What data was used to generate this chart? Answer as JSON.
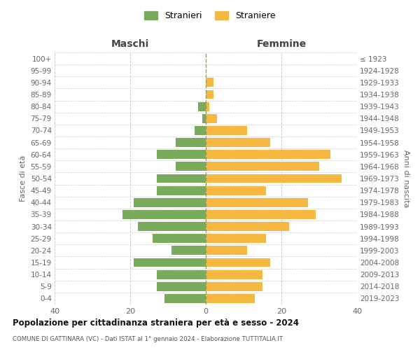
{
  "age_groups": [
    "0-4",
    "5-9",
    "10-14",
    "15-19",
    "20-24",
    "25-29",
    "30-34",
    "35-39",
    "40-44",
    "45-49",
    "50-54",
    "55-59",
    "60-64",
    "65-69",
    "70-74",
    "75-79",
    "80-84",
    "85-89",
    "90-94",
    "95-99",
    "100+"
  ],
  "birth_years": [
    "2019-2023",
    "2014-2018",
    "2009-2013",
    "2004-2008",
    "1999-2003",
    "1994-1998",
    "1989-1993",
    "1984-1988",
    "1979-1983",
    "1974-1978",
    "1969-1973",
    "1964-1968",
    "1959-1963",
    "1954-1958",
    "1949-1953",
    "1944-1948",
    "1939-1943",
    "1934-1938",
    "1929-1933",
    "1924-1928",
    "≤ 1923"
  ],
  "maschi": [
    11,
    13,
    13,
    19,
    9,
    14,
    18,
    22,
    19,
    13,
    13,
    8,
    13,
    8,
    3,
    1,
    2,
    0,
    0,
    0,
    0
  ],
  "femmine": [
    13,
    15,
    15,
    17,
    11,
    16,
    22,
    29,
    27,
    16,
    36,
    30,
    33,
    17,
    11,
    3,
    1,
    2,
    2,
    0,
    0
  ],
  "color_maschi": "#7aaa5b",
  "color_femmine": "#f5b942",
  "xlim": 40,
  "title": "Popolazione per cittadinanza straniera per età e sesso - 2024",
  "subtitle": "COMUNE DI GATTINARA (VC) - Dati ISTAT al 1° gennaio 2024 - Elaborazione TUTTITALIA.IT",
  "header_left": "Maschi",
  "header_right": "Femmine",
  "ylabel_left": "Fasce di età",
  "ylabel_right": "Anni di nascita",
  "legend_maschi": "Stranieri",
  "legend_femmine": "Straniere",
  "background_color": "#ffffff",
  "grid_color": "#cccccc"
}
